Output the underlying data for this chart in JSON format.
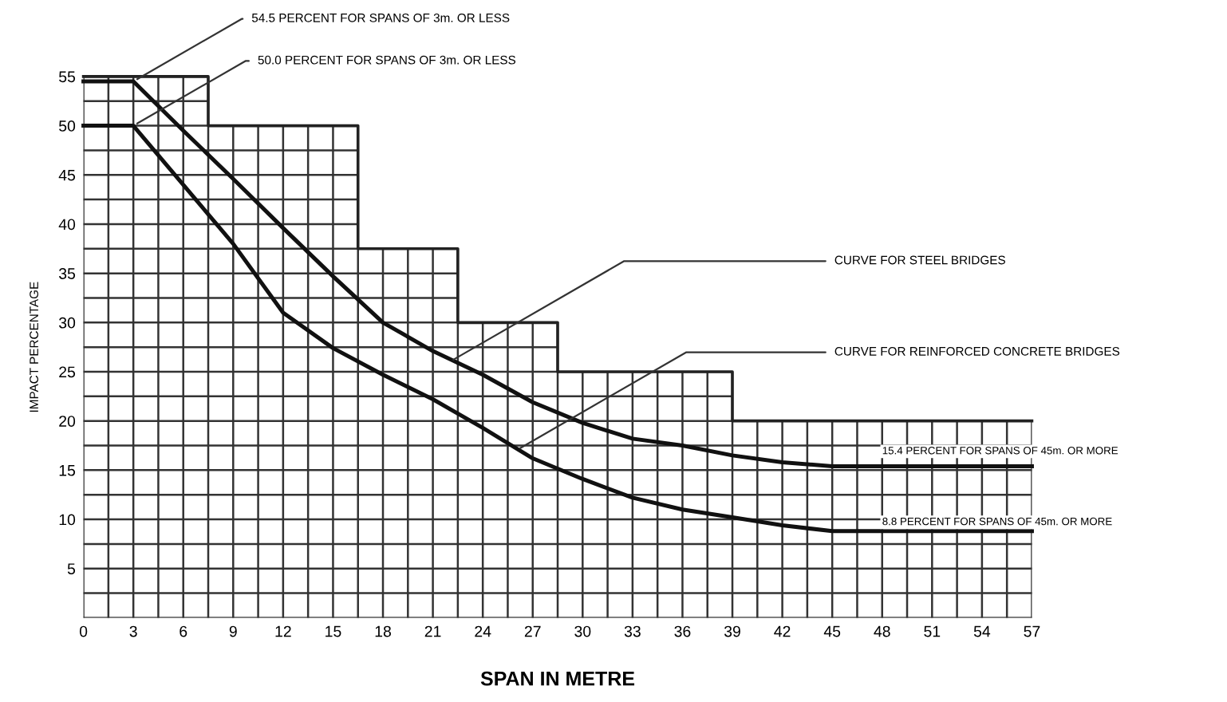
{
  "chart_data": {
    "type": "step",
    "xlabel": "SPAN IN METRE",
    "ylabel": "IMPACT PERCENTAGE",
    "xlim": [
      0,
      57
    ],
    "ylim": [
      0,
      55
    ],
    "xticks": [
      0,
      3,
      6,
      9,
      12,
      15,
      18,
      21,
      24,
      27,
      30,
      33,
      36,
      39,
      42,
      45,
      48,
      51,
      54,
      57
    ],
    "yticks": [
      5,
      10,
      15,
      20,
      25,
      30,
      35,
      40,
      45,
      50,
      55
    ],
    "grid": true,
    "marker": "none",
    "line_style": "solid",
    "series": [
      {
        "color": "#222222",
        "x": [
          0,
          7.5,
          16.5,
          22.5,
          28.5,
          39,
          57
        ],
        "values": [
          55,
          50,
          37.5,
          30,
          25,
          20,
          20
        ]
      },
      {
        "type": "line",
        "color": "#111111",
        "x": [
          0,
          3,
          6,
          9,
          12,
          15,
          18,
          21,
          24,
          27,
          30,
          33,
          36,
          39,
          42,
          45,
          48,
          51,
          54,
          57
        ],
        "values": [
          54.5,
          54.5,
          49.5,
          44.6,
          39.6,
          34.7,
          30,
          27.1,
          24.7,
          21.9,
          19.8,
          18.2,
          17.5,
          16.5,
          15.8,
          15.4,
          15.4,
          15.4,
          15.4,
          15.4
        ]
      },
      {
        "type": "line",
        "color": "#111111",
        "x": [
          0,
          3,
          6,
          9,
          12,
          15,
          18,
          21,
          24,
          27,
          30,
          33,
          36,
          39,
          42,
          45,
          48,
          51,
          54,
          57
        ],
        "values": [
          50,
          50,
          44,
          38,
          31,
          27.4,
          24.7,
          22.2,
          19.3,
          16.2,
          14.1,
          12.2,
          11,
          10.2,
          9.4,
          8.8,
          8.8,
          8.8,
          8.8,
          8.8
        ]
      }
    ],
    "annotations": [
      {
        "text": "54.5 PERCENT FOR SPANS OF 3m. OR LESS",
        "x": 3,
        "y": 54.5
      },
      {
        "text": "50.0 PERCENT FOR SPANS OF 3m. OR LESS",
        "x": 3,
        "y": 50
      },
      {
        "text": "CURVE FOR STEEL BRIDGES",
        "x": 22,
        "y": 26
      },
      {
        "text": "CURVE FOR REINFORCED CONCRETE BRIDGES",
        "x": 26,
        "y": 17
      },
      {
        "text": "15.4 PERCENT FOR SPANS OF 45m. OR MORE",
        "x": 48,
        "y": 15.4
      },
      {
        "text": "8.8 PERCENT FOR SPANS OF 45m. OR MORE",
        "x": 48,
        "y": 8.8
      }
    ]
  }
}
